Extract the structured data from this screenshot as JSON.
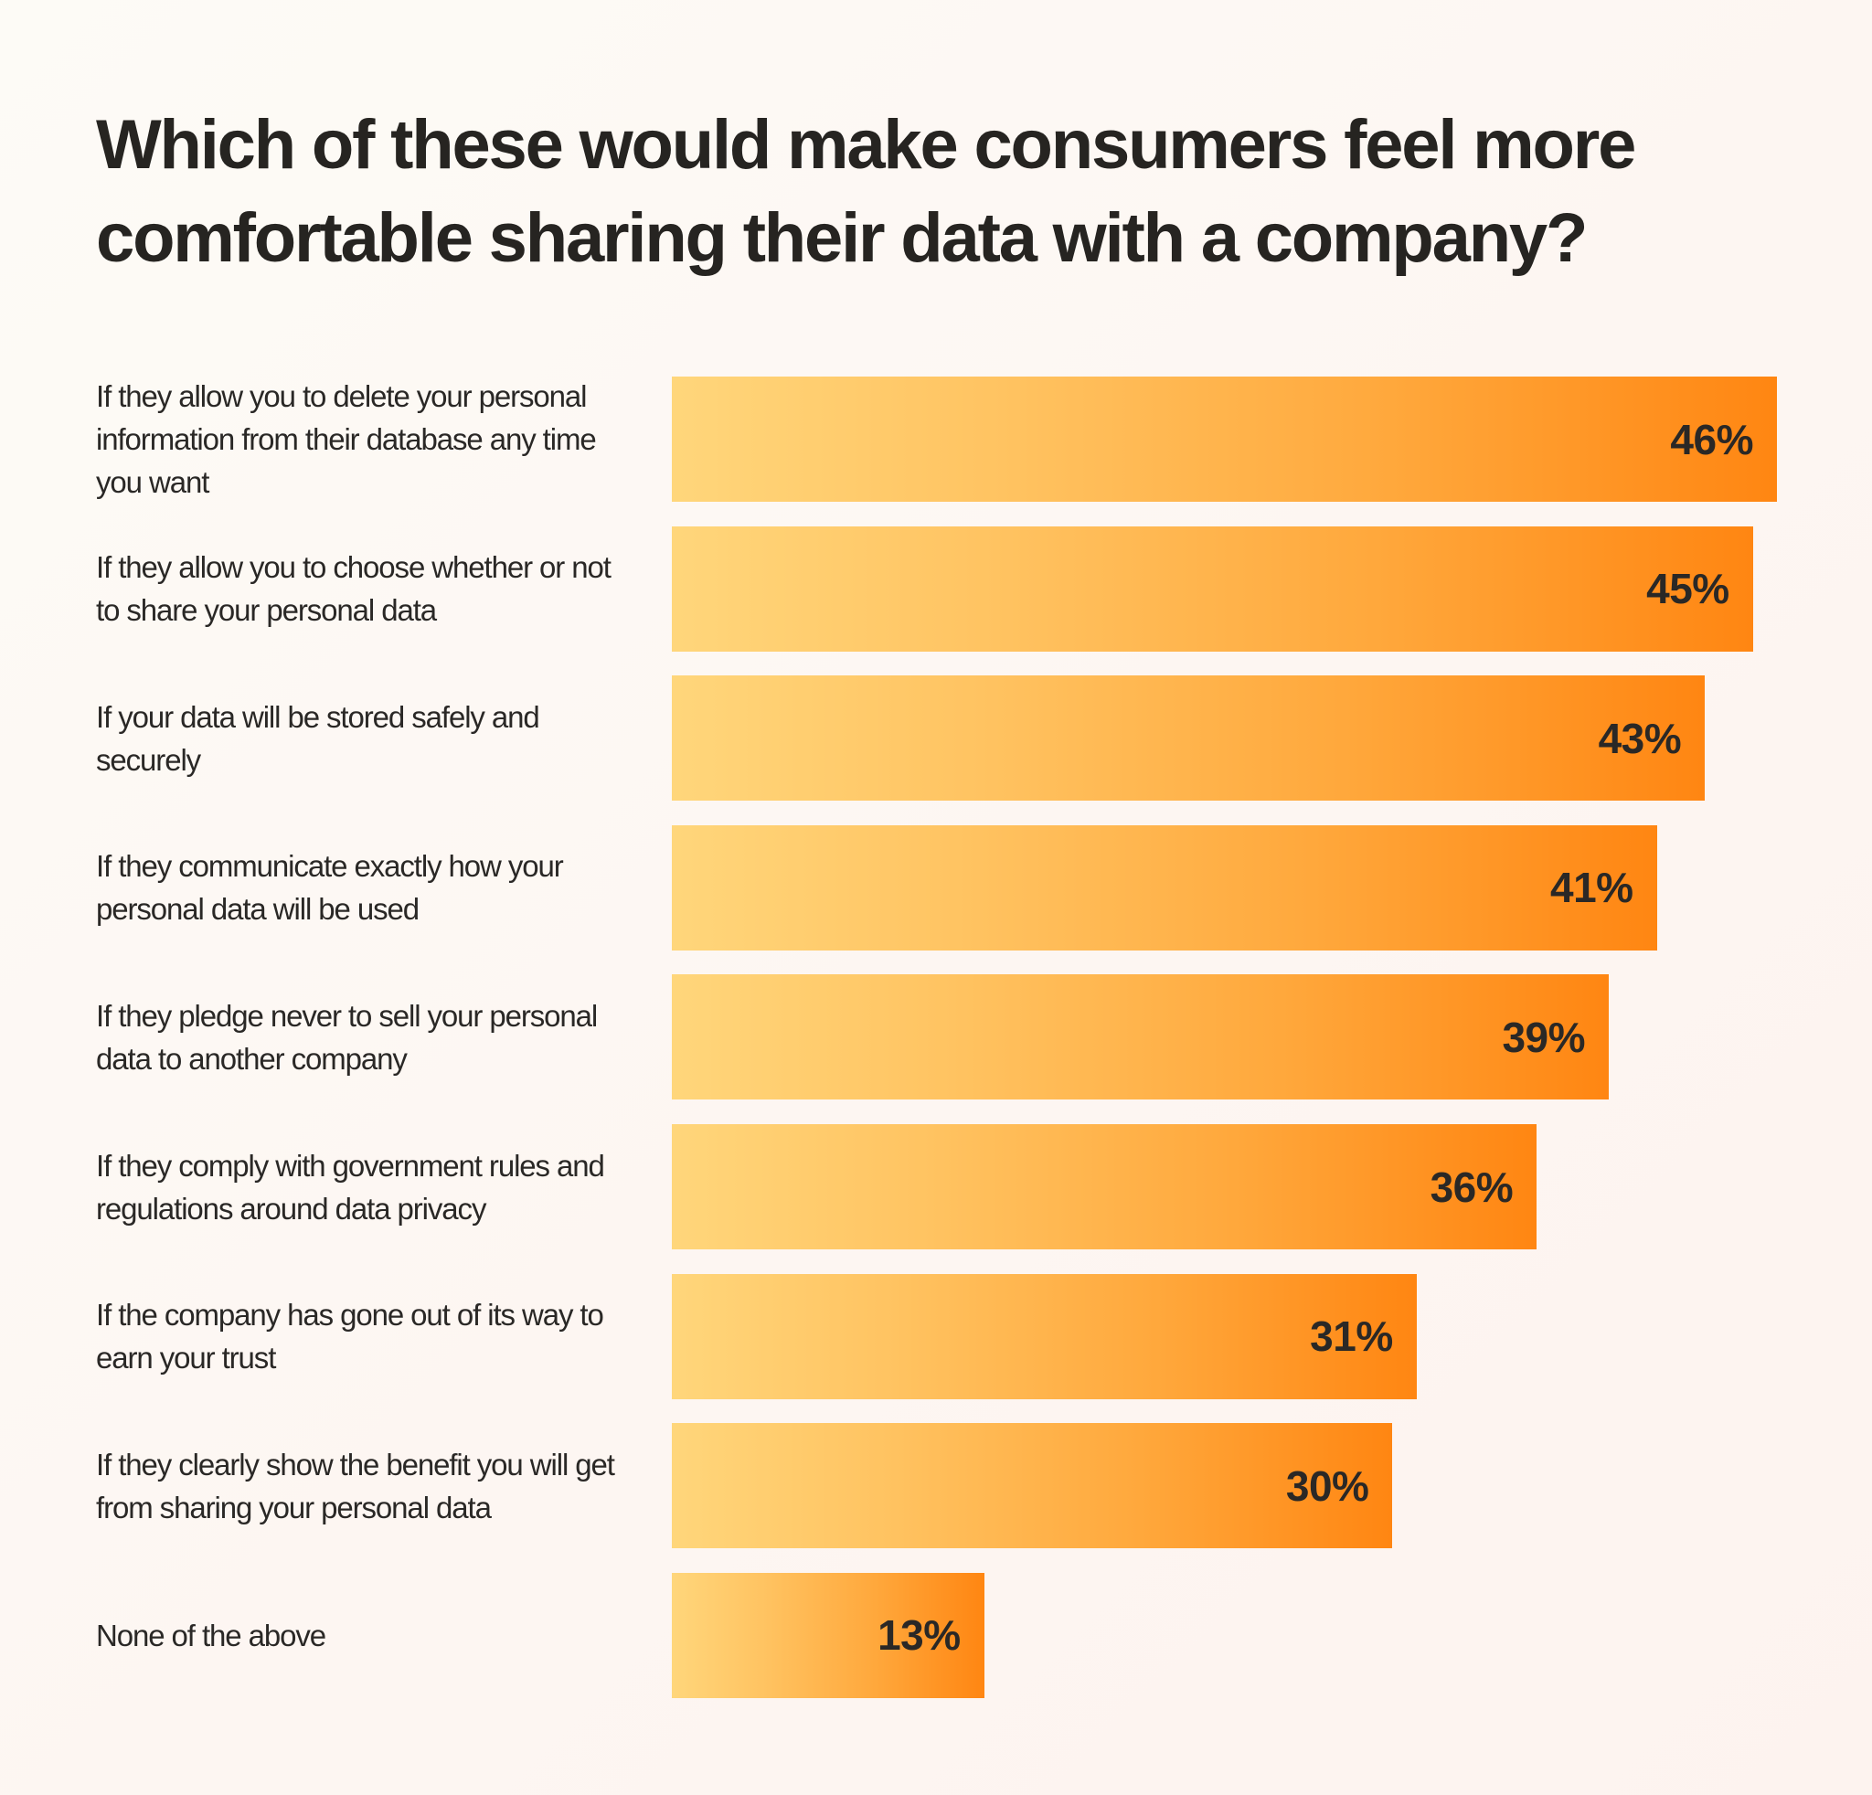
{
  "title_line1": "Which of these would make consumers feel more",
  "title_line2": "comfortable sharing their data with a company?",
  "chart_data": {
    "type": "bar",
    "orientation": "horizontal",
    "title": "Which of these would make consumers feel more comfortable sharing their data with a company?",
    "xlabel": "",
    "ylabel": "",
    "unit": "%",
    "xlim": [
      0,
      46
    ],
    "grid": false,
    "legend": null,
    "categories": [
      "If they allow you to delete your personal information from their database any time you want",
      "If they allow you to choose whether or not to share your personal data",
      "If your data will be stored safely and securely",
      "If they communicate exactly how your personal data will be used",
      "If they pledge never to sell your personal data to another company",
      "If they comply with government rules and regulations around data privacy",
      "If the company has gone out of its way to earn your trust",
      "If they clearly show the benefit you will get from sharing your personal data",
      "None of the above"
    ],
    "values": [
      46,
      45,
      43,
      41,
      39,
      36,
      31,
      30,
      13
    ],
    "value_labels": [
      "46%",
      "45%",
      "43%",
      "41%",
      "39%",
      "36%",
      "31%",
      "30%",
      "13%"
    ],
    "bar_gradient": [
      "#ffd67b",
      "#ff8612"
    ]
  }
}
